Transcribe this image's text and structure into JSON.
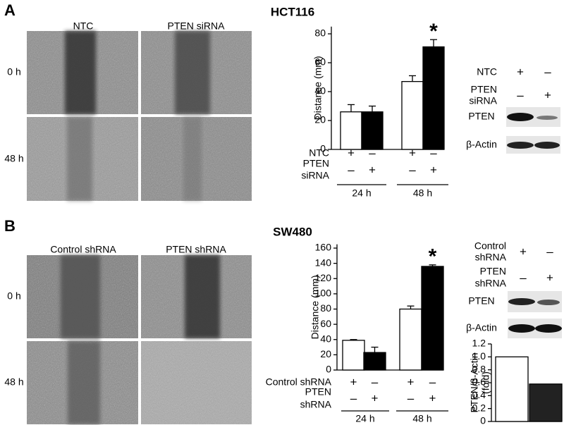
{
  "panels": [
    {
      "label": "A",
      "cell_line": "HCT116",
      "columns": [
        "NTC",
        "PTEN siRNA"
      ],
      "rows": [
        "0 h",
        "48 h"
      ],
      "blot": {
        "conditions": [
          {
            "label": [
              "NTC"
            ],
            "marks": [
              "+",
              "–"
            ]
          },
          {
            "label": [
              "PTEN",
              "siRNA"
            ],
            "marks": [
              "–",
              "+"
            ]
          }
        ],
        "bands": [
          "PTEN",
          "β-Actin"
        ]
      }
    },
    {
      "label": "B",
      "cell_line": "SW480",
      "columns": [
        "Control shRNA",
        "PTEN shRNA"
      ],
      "rows": [
        "0 h",
        "48 h"
      ],
      "blot": {
        "conditions": [
          {
            "label": [
              "Control",
              "shRNA"
            ],
            "marks": [
              "+",
              "–"
            ]
          },
          {
            "label": [
              "PTEN",
              "shRNA"
            ],
            "marks": [
              "–",
              "+"
            ]
          }
        ],
        "bands": [
          "PTEN",
          "β-Actin"
        ]
      }
    }
  ],
  "chart_data": [
    {
      "type": "bar",
      "ylabel": [
        "Distance (mm)"
      ],
      "ylim": [
        0,
        85
      ],
      "yticks": [
        0,
        20,
        40,
        60,
        80
      ],
      "values": [
        26,
        26,
        47,
        71
      ],
      "errors": [
        5,
        4,
        4,
        5
      ],
      "colors": [
        "#ffffff",
        "#000000",
        "#ffffff",
        "#000000"
      ],
      "annotations": [
        {
          "index": 3,
          "text": "*"
        }
      ],
      "conditions": [
        {
          "label": [
            "NTC"
          ],
          "marks": [
            "+",
            "–",
            "+",
            "–"
          ]
        },
        {
          "label": [
            "PTEN",
            "siRNA"
          ],
          "marks": [
            "–",
            "+",
            "–",
            "+"
          ]
        }
      ],
      "groups": [
        "24 h",
        "48 h"
      ]
    },
    {
      "type": "bar",
      "ylabel": [
        "Distance (mm)"
      ],
      "ylim": [
        0,
        165
      ],
      "yticks": [
        0,
        20,
        40,
        60,
        80,
        100,
        120,
        140,
        160
      ],
      "values": [
        39,
        23,
        80,
        136
      ],
      "errors": [
        1,
        7,
        4,
        2
      ],
      "colors": [
        "#ffffff",
        "#000000",
        "#ffffff",
        "#000000"
      ],
      "annotations": [
        {
          "index": 3,
          "text": "*"
        }
      ],
      "conditions": [
        {
          "label": [
            "Control shRNA"
          ],
          "marks": [
            "+",
            "–",
            "+",
            "–"
          ]
        },
        {
          "label": [
            "PTEN",
            "shRNA"
          ],
          "marks": [
            "–",
            "+",
            "–",
            "+"
          ]
        }
      ],
      "groups": [
        "24 h",
        "48 h"
      ]
    },
    {
      "type": "bar",
      "ylabel": [
        "PTEN/β-Actin",
        "(fold)"
      ],
      "ylim": [
        0,
        1.2
      ],
      "yticks": [
        0,
        0.2,
        0.4,
        0.6,
        0.8,
        {
          "value": 1,
          "label": "1.0"
        },
        1.2
      ],
      "values": [
        1.0,
        0.58
      ],
      "colors": [
        "#ffffff",
        "#222222"
      ]
    }
  ]
}
